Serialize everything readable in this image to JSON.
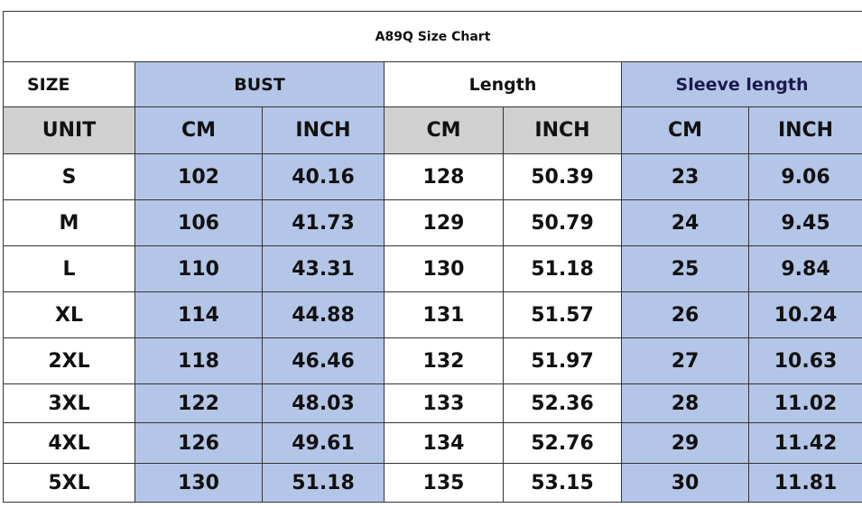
{
  "table": {
    "title": "A89Q Size Chart",
    "header": [
      "SIZE",
      "BUST",
      "Length",
      "Sleeve length"
    ],
    "units": [
      "UNIT",
      "CM",
      "INCH",
      "CM",
      "INCH",
      "CM",
      "INCH"
    ],
    "rows": [
      [
        "S",
        102,
        40.16,
        128,
        50.39,
        23,
        9.06
      ],
      [
        "M",
        106,
        41.73,
        129,
        50.79,
        24,
        9.45
      ],
      [
        "L",
        110,
        43.31,
        130,
        51.18,
        25,
        9.84
      ],
      [
        "XL",
        114,
        44.88,
        131,
        51.57,
        26,
        10.24
      ],
      [
        "2XL",
        118,
        46.46,
        132,
        51.97,
        27,
        10.63
      ],
      [
        "3XL",
        122,
        48.03,
        133,
        52.36,
        28,
        11.02
      ],
      [
        "4XL",
        126,
        49.61,
        134,
        52.76,
        29,
        11.42
      ],
      [
        "5XL",
        130,
        51.18,
        135,
        53.15,
        30,
        11.81
      ]
    ]
  }
}
